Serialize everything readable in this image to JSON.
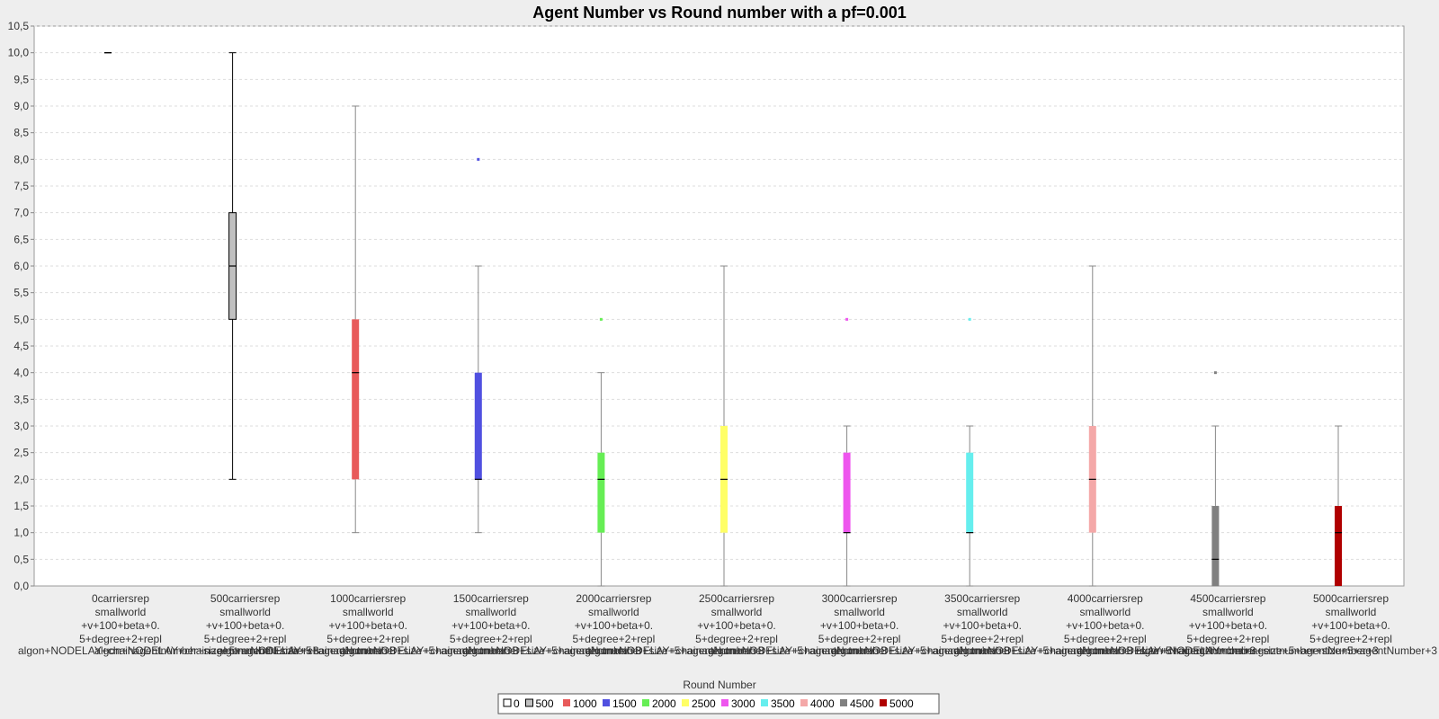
{
  "chart_data": {
    "type": "box",
    "title": "Agent Number vs Round number with a pf=0.001",
    "xlabel": "Round Number",
    "ylabel": "",
    "ylim": [
      0,
      10.5
    ],
    "y_ticks": [
      "0,0",
      "0,5",
      "1,0",
      "1,5",
      "2,0",
      "2,5",
      "3,0",
      "3,5",
      "4,0",
      "4,5",
      "5,0",
      "5,5",
      "6,0",
      "6,5",
      "7,0",
      "7,5",
      "8,0",
      "8,5",
      "9,0",
      "9,5",
      "10,0",
      "10,5"
    ],
    "grid": true,
    "legend_position": "bottom",
    "categories": [
      {
        "lines": [
          "0carriersrep",
          "smallworld",
          "+v+100+beta+0.",
          "5+degree+2+repl",
          "algon+NODELAY+chainagentnumber+size+5+agentNumber+3"
        ]
      },
      {
        "lines": [
          "500carriersrep",
          "smallworld",
          "+v+100+beta+0.",
          "5+degree+2+repl",
          "algon+NODELAY+chainagentnumber+size+5+agentNumber+3"
        ]
      },
      {
        "lines": [
          "1000carriersrep",
          "smallworld",
          "+v+100+beta+0.",
          "5+degree+2+repl",
          "algon+NODELAY+chainagentnumber+size+5+agentNumber+3"
        ]
      },
      {
        "lines": [
          "1500carriersrep",
          "smallworld",
          "+v+100+beta+0.",
          "5+degree+2+repl",
          "algon+NODELAY+chainagentnumber+size+5+agentNumber+3"
        ]
      },
      {
        "lines": [
          "2000carriersrep",
          "smallworld",
          "+v+100+beta+0.",
          "5+degree+2+repl",
          "algon+NODELAY+chainagentnumber+size+5+agentNumber+3"
        ]
      },
      {
        "lines": [
          "2500carriersrep",
          "smallworld",
          "+v+100+beta+0.",
          "5+degree+2+repl",
          "algon+NODELAY+chainagentnumber+size+5+agentNumber+3"
        ]
      },
      {
        "lines": [
          "3000carriersrep",
          "smallworld",
          "+v+100+beta+0.",
          "5+degree+2+repl",
          "algon+NODELAY+chainagentnumber+size+5+agentNumber+3"
        ]
      },
      {
        "lines": [
          "3500carriersrep",
          "smallworld",
          "+v+100+beta+0.",
          "5+degree+2+repl",
          "algon+NODELAY+chainagentnumber+size+5+agentNumber+3"
        ]
      },
      {
        "lines": [
          "4000carriersrep",
          "smallworld",
          "+v+100+beta+0.",
          "5+degree+2+repl",
          "algon+NODELAY+chainagentnumber+size+5+agentNumber+3"
        ]
      },
      {
        "lines": [
          "4500carriersrep",
          "smallworld",
          "+v+100+beta+0.",
          "5+degree+2+repl",
          "algon+NODELAY+chainagentnumber+size+5+agentNumber+3"
        ]
      },
      {
        "lines": [
          "5000carriersrep",
          "smallworld",
          "+v+100+beta+0.",
          "5+degree+2+repl",
          "algon+NODELAY+chainagentnumber+size+5+agentNumber+3"
        ]
      }
    ],
    "series": [
      {
        "name": "0",
        "color": "#ffffff",
        "min": 10,
        "q1": 10,
        "median": 10,
        "q3": 10,
        "max": 10,
        "outliers": []
      },
      {
        "name": "500",
        "color": "#c0c0c0",
        "min": 2,
        "q1": 5,
        "median": 6,
        "q3": 7,
        "max": 10,
        "outliers": []
      },
      {
        "name": "1000",
        "color": "#e85a5a",
        "min": 1,
        "q1": 2,
        "median": 4,
        "q3": 5,
        "max": 9,
        "outliers": []
      },
      {
        "name": "1500",
        "color": "#5050e0",
        "min": 1,
        "q1": 2,
        "median": 2,
        "q3": 4,
        "max": 6,
        "outliers": [
          8
        ]
      },
      {
        "name": "2000",
        "color": "#66ee55",
        "min": 0,
        "q1": 1,
        "median": 2,
        "q3": 2.5,
        "max": 4,
        "outliers": [
          5
        ]
      },
      {
        "name": "2500",
        "color": "#ffff66",
        "min": 0,
        "q1": 1,
        "median": 2,
        "q3": 3,
        "max": 6,
        "outliers": []
      },
      {
        "name": "3000",
        "color": "#ee55ee",
        "min": 0,
        "q1": 1,
        "median": 1,
        "q3": 2.5,
        "max": 3,
        "outliers": [
          5
        ]
      },
      {
        "name": "3500",
        "color": "#66eeee",
        "min": 0,
        "q1": 1,
        "median": 1,
        "q3": 2.5,
        "max": 3,
        "outliers": [
          5
        ]
      },
      {
        "name": "4000",
        "color": "#f4a8a8",
        "min": 0,
        "q1": 1,
        "median": 2,
        "q3": 3,
        "max": 6,
        "outliers": []
      },
      {
        "name": "4500",
        "color": "#808080",
        "min": 0,
        "q1": 0,
        "median": 0.5,
        "q3": 1.5,
        "max": 3,
        "outliers": [
          4
        ]
      },
      {
        "name": "5000",
        "color": "#b00000",
        "min": 0,
        "q1": 0,
        "median": 1,
        "q3": 1.5,
        "max": 3,
        "outliers": []
      }
    ]
  }
}
